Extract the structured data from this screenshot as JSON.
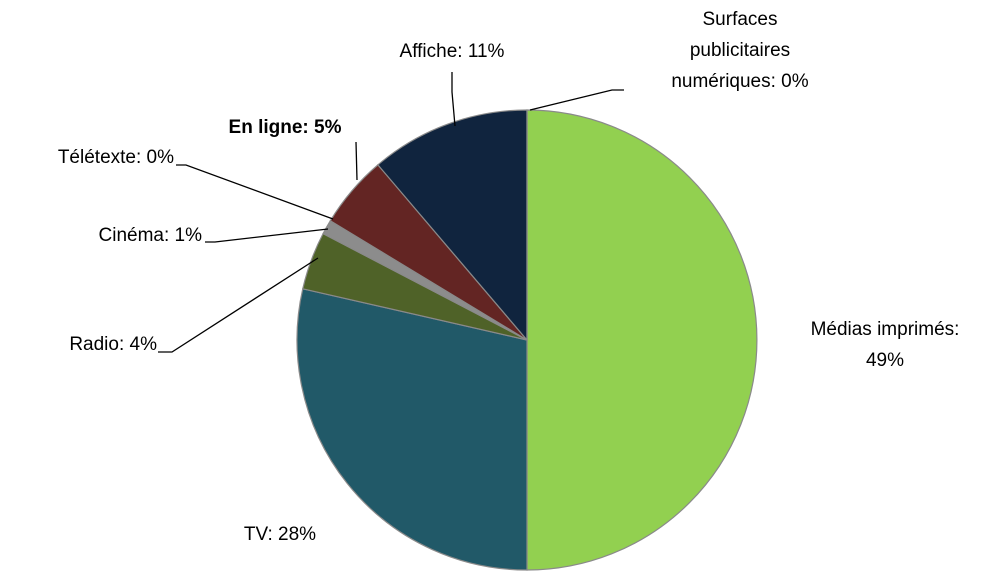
{
  "chart_data": {
    "type": "pie",
    "value_labels": [
      "Médias imprimés: 49%",
      "TV: 28%",
      "Radio: 4%",
      "Cinéma: 1%",
      "Télétexte: 0%",
      "En ligne: 5%",
      "Affiche: 11%",
      "Surfaces publicitaires numériques: 0%"
    ],
    "values": [
      49,
      28,
      4,
      1,
      0,
      5,
      11,
      0
    ],
    "colors": [
      "#92d050",
      "#215968",
      "#4f6228",
      "#8c8c8c",
      "#4bacc6",
      "#632523",
      "#10243e",
      "#a6a6a6"
    ]
  }
}
